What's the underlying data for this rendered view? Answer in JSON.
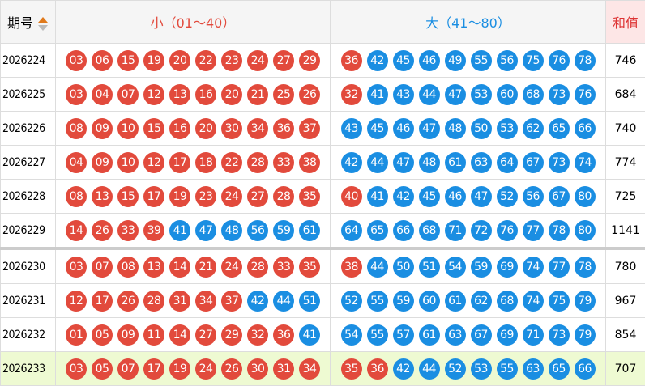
{
  "header": {
    "period": "期号",
    "small": "小（01～40）",
    "big": "大（41～80）",
    "sum": "和值"
  },
  "palette": {
    "red": "#e24a3c",
    "blue": "#1a8ee2"
  },
  "rows": [
    {
      "period": "2026224",
      "red_balls": [
        "03",
        "06",
        "15",
        "19",
        "20",
        "22",
        "23",
        "24",
        "27",
        "29",
        "36"
      ],
      "blue_balls": [
        "42",
        "45",
        "46",
        "49",
        "55",
        "56",
        "75",
        "76",
        "78"
      ],
      "sum": "746"
    },
    {
      "period": "2026225",
      "red_balls": [
        "03",
        "04",
        "07",
        "12",
        "13",
        "16",
        "20",
        "21",
        "25",
        "26",
        "32"
      ],
      "blue_balls": [
        "41",
        "43",
        "44",
        "47",
        "53",
        "60",
        "68",
        "73",
        "76"
      ],
      "sum": "684"
    },
    {
      "period": "2026226",
      "red_balls": [
        "08",
        "09",
        "10",
        "15",
        "16",
        "20",
        "30",
        "34",
        "36",
        "37"
      ],
      "blue_balls": [
        "43",
        "45",
        "46",
        "47",
        "48",
        "50",
        "53",
        "62",
        "65",
        "66"
      ],
      "sum": "740"
    },
    {
      "period": "2026227",
      "red_balls": [
        "04",
        "09",
        "10",
        "12",
        "17",
        "18",
        "22",
        "28",
        "33",
        "38"
      ],
      "blue_balls": [
        "42",
        "44",
        "47",
        "48",
        "61",
        "63",
        "64",
        "67",
        "73",
        "74"
      ],
      "sum": "774"
    },
    {
      "period": "2026228",
      "red_balls": [
        "08",
        "13",
        "15",
        "17",
        "19",
        "23",
        "24",
        "27",
        "28",
        "35",
        "40"
      ],
      "blue_balls": [
        "41",
        "42",
        "45",
        "46",
        "47",
        "52",
        "56",
        "67",
        "80"
      ],
      "sum": "725"
    },
    {
      "period": "2026229",
      "red_balls": [
        "14",
        "26",
        "33",
        "39"
      ],
      "blue_balls": [
        "41",
        "47",
        "48",
        "56",
        "59",
        "61",
        "64",
        "65",
        "66",
        "68",
        "71",
        "72",
        "76",
        "77",
        "78",
        "80"
      ],
      "sum": "1141"
    },
    {
      "period": "2026230",
      "red_balls": [
        "03",
        "07",
        "08",
        "13",
        "14",
        "21",
        "24",
        "28",
        "33",
        "35",
        "38"
      ],
      "blue_balls": [
        "44",
        "50",
        "51",
        "54",
        "59",
        "69",
        "74",
        "77",
        "78"
      ],
      "sum": "780"
    },
    {
      "period": "2026231",
      "red_balls": [
        "12",
        "17",
        "26",
        "28",
        "31",
        "34",
        "37"
      ],
      "blue_balls": [
        "42",
        "44",
        "51",
        "52",
        "55",
        "59",
        "60",
        "61",
        "62",
        "68",
        "74",
        "75",
        "79"
      ],
      "sum": "967"
    },
    {
      "period": "2026232",
      "red_balls": [
        "01",
        "05",
        "09",
        "11",
        "14",
        "27",
        "29",
        "32",
        "36"
      ],
      "blue_balls": [
        "41",
        "54",
        "55",
        "57",
        "61",
        "63",
        "67",
        "69",
        "71",
        "73",
        "79"
      ],
      "sum": "854"
    },
    {
      "period": "2026233",
      "red_balls": [
        "03",
        "05",
        "07",
        "17",
        "19",
        "24",
        "26",
        "30",
        "31",
        "34",
        "35",
        "36"
      ],
      "blue_balls": [
        "42",
        "44",
        "52",
        "53",
        "55",
        "63",
        "65",
        "66"
      ],
      "sum": "707"
    }
  ]
}
